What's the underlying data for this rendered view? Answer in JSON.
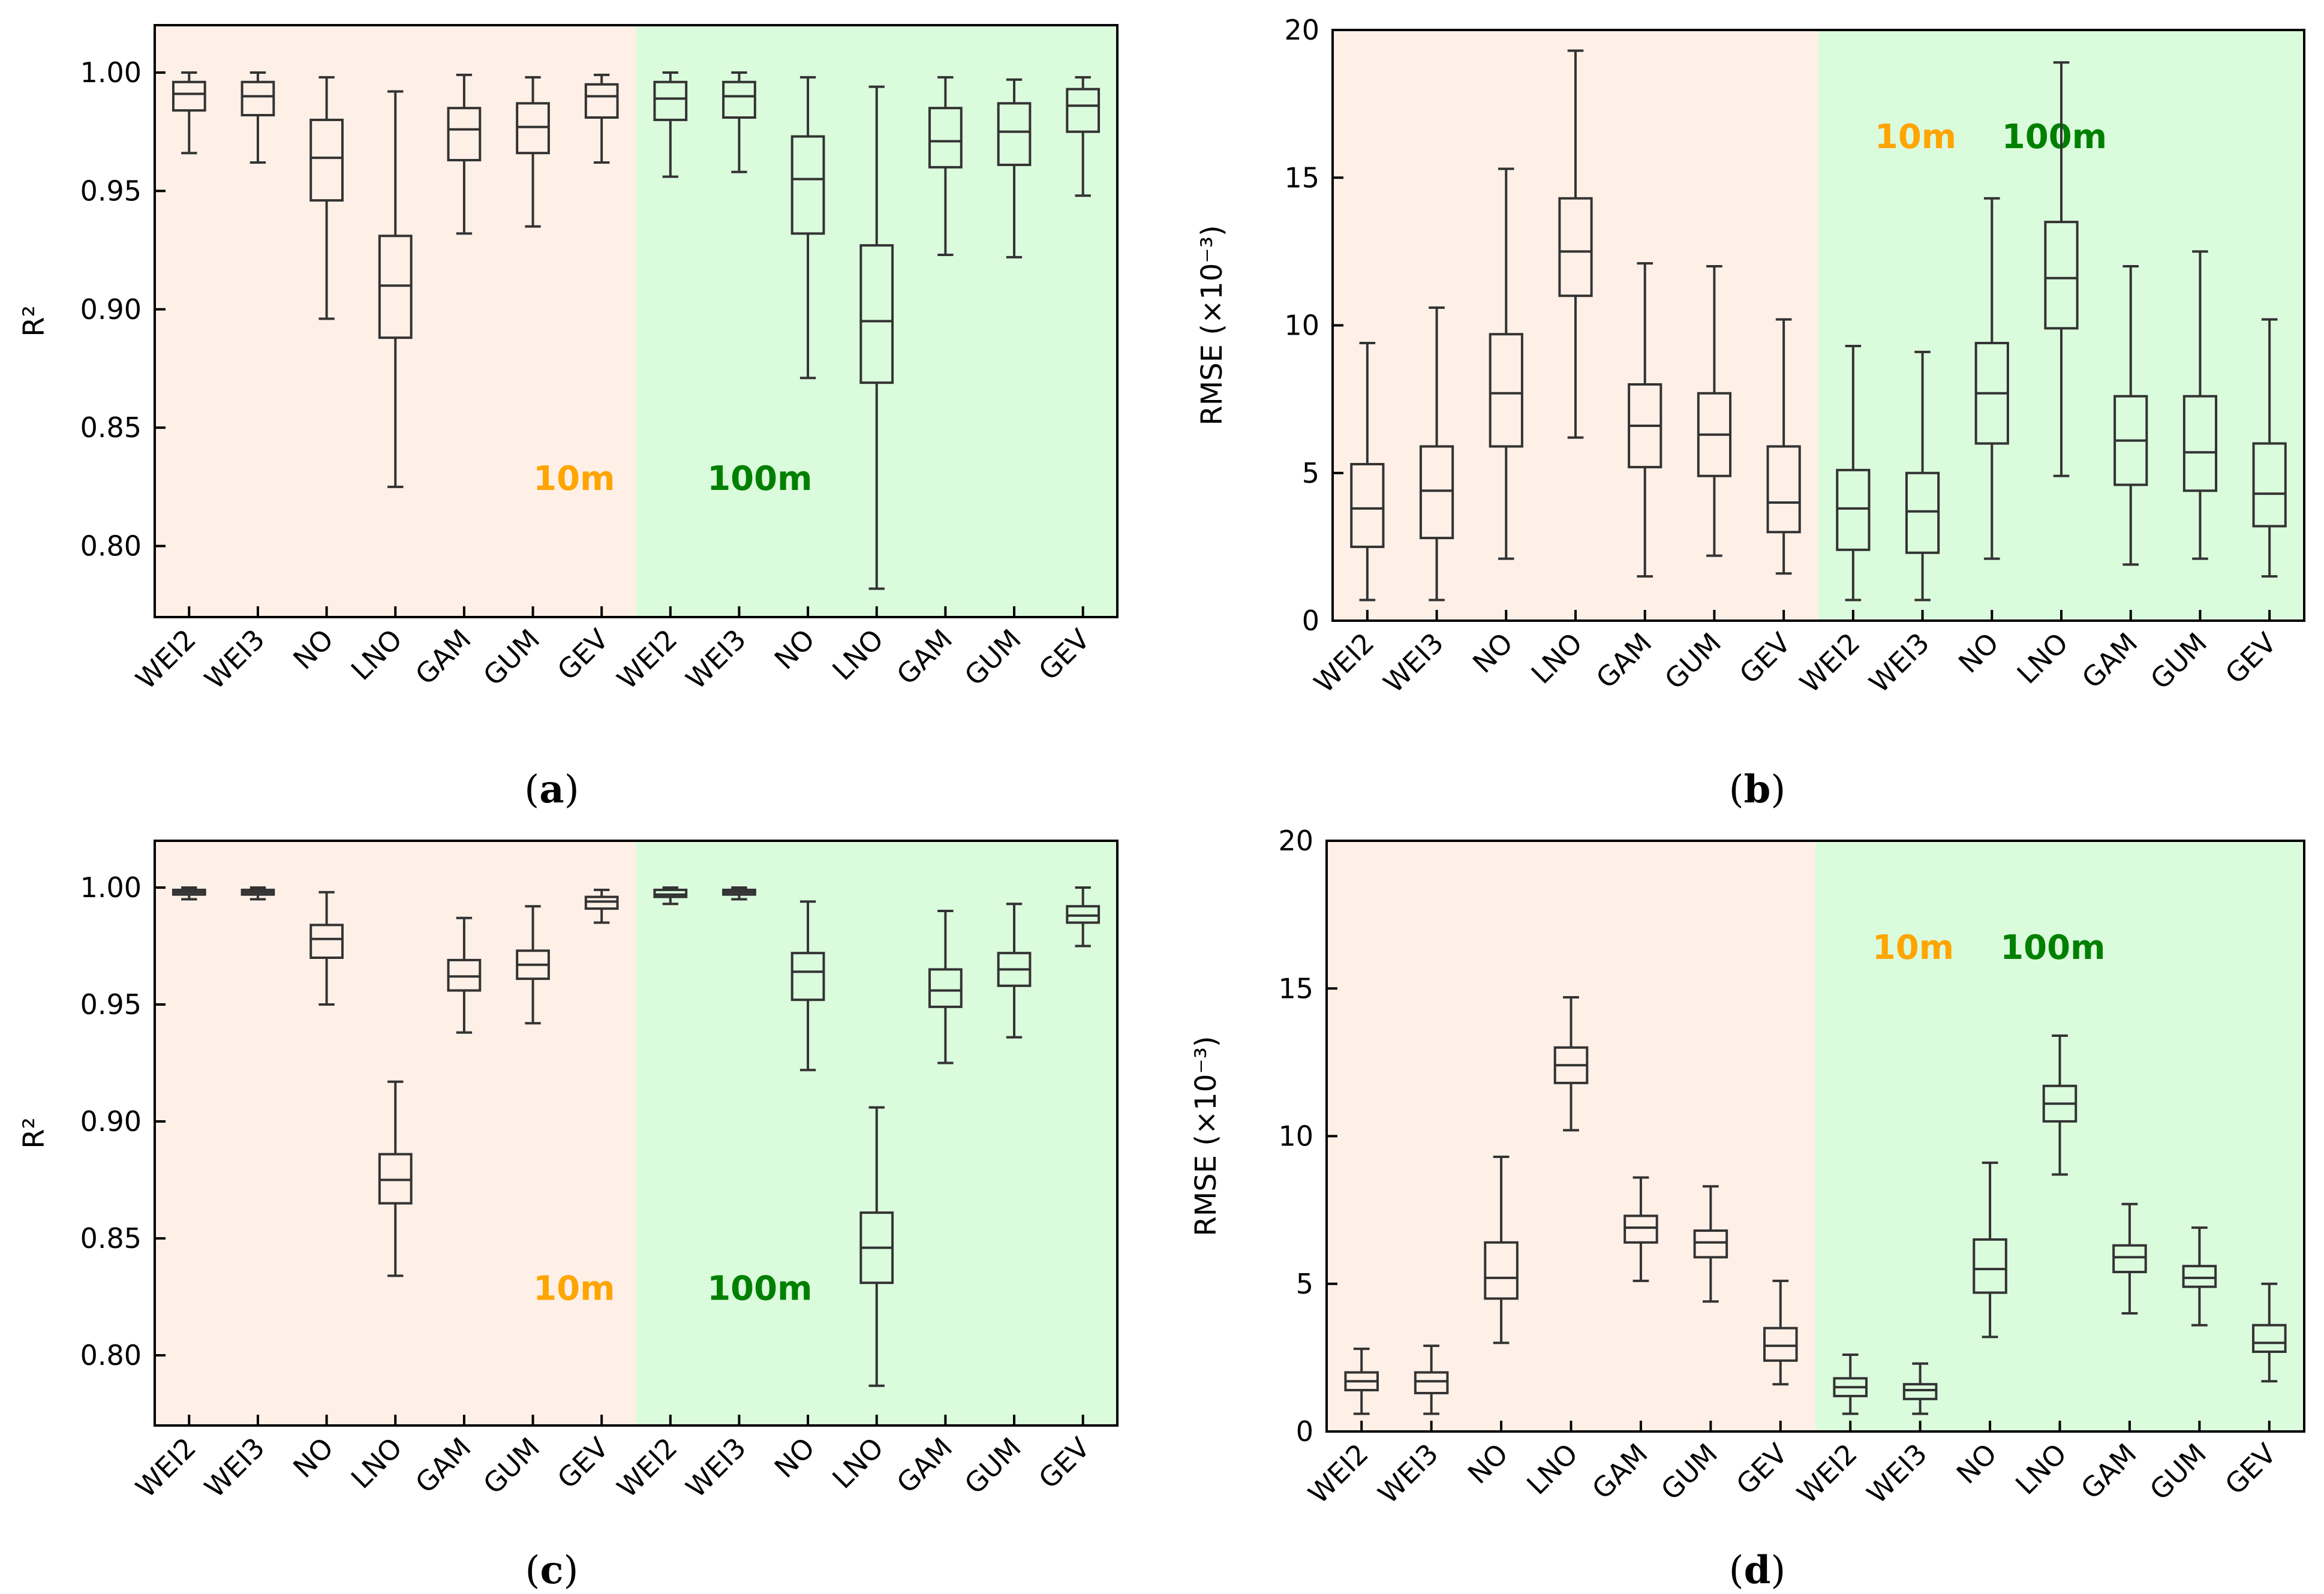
{
  "colors": {
    "region_10m_bg": "#fef0e7",
    "region_100m_bg": "#dbfbdd",
    "label_10m": "#ffa500",
    "label_100m": "#008000",
    "box_stroke": "#333333"
  },
  "chart_data": [
    {
      "type": "boxplot",
      "panel_label": "a",
      "ylabel": "R²",
      "ylim": [
        0.77,
        1.02
      ],
      "yticks": [
        0.8,
        0.85,
        0.9,
        0.95,
        1.0
      ],
      "ytick_labels": [
        "0.80",
        "0.85",
        "0.90",
        "0.95",
        "1.00"
      ],
      "categories": [
        "WEI2",
        "WEI3",
        "NO",
        "LNO",
        "GAM",
        "GUM",
        "GEV",
        "WEI2",
        "WEI3",
        "NO",
        "LNO",
        "GAM",
        "GUM",
        "GEV"
      ],
      "regions": [
        {
          "label": "10m",
          "range": [
            0,
            6
          ]
        },
        {
          "label": "100m",
          "range": [
            7,
            13
          ]
        }
      ],
      "label_pos": "bottom",
      "boxes": [
        {
          "min": 0.966,
          "q1": 0.984,
          "median": 0.991,
          "q3": 0.996,
          "max": 1.0
        },
        {
          "min": 0.962,
          "q1": 0.982,
          "median": 0.99,
          "q3": 0.996,
          "max": 1.0
        },
        {
          "min": 0.896,
          "q1": 0.946,
          "median": 0.964,
          "q3": 0.98,
          "max": 0.998
        },
        {
          "min": 0.825,
          "q1": 0.888,
          "median": 0.91,
          "q3": 0.931,
          "max": 0.992
        },
        {
          "min": 0.932,
          "q1": 0.963,
          "median": 0.976,
          "q3": 0.985,
          "max": 0.999
        },
        {
          "min": 0.935,
          "q1": 0.966,
          "median": 0.977,
          "q3": 0.987,
          "max": 0.998
        },
        {
          "min": 0.962,
          "q1": 0.981,
          "median": 0.99,
          "q3": 0.995,
          "max": 0.999
        },
        {
          "min": 0.956,
          "q1": 0.98,
          "median": 0.989,
          "q3": 0.996,
          "max": 1.0
        },
        {
          "min": 0.958,
          "q1": 0.981,
          "median": 0.99,
          "q3": 0.996,
          "max": 1.0
        },
        {
          "min": 0.871,
          "q1": 0.932,
          "median": 0.955,
          "q3": 0.973,
          "max": 0.998
        },
        {
          "min": 0.782,
          "q1": 0.869,
          "median": 0.895,
          "q3": 0.927,
          "max": 0.994
        },
        {
          "min": 0.923,
          "q1": 0.96,
          "median": 0.971,
          "q3": 0.985,
          "max": 0.998
        },
        {
          "min": 0.922,
          "q1": 0.961,
          "median": 0.975,
          "q3": 0.987,
          "max": 0.997
        },
        {
          "min": 0.948,
          "q1": 0.975,
          "median": 0.986,
          "q3": 0.993,
          "max": 0.998
        }
      ]
    },
    {
      "type": "boxplot",
      "panel_label": "b",
      "ylabel": "RMSE (×10⁻³)",
      "ylim": [
        0,
        20
      ],
      "yticks": [
        0,
        5,
        10,
        15,
        20
      ],
      "ytick_labels": [
        "0",
        "5",
        "10",
        "15",
        "20"
      ],
      "categories": [
        "WEI2",
        "WEI3",
        "NO",
        "LNO",
        "GAM",
        "GUM",
        "GEV",
        "WEI2",
        "WEI3",
        "NO",
        "LNO",
        "GAM",
        "GUM",
        "GEV"
      ],
      "regions": [
        {
          "label": "10m",
          "range": [
            0,
            6
          ]
        },
        {
          "label": "100m",
          "range": [
            7,
            13
          ]
        }
      ],
      "label_pos": "top",
      "boxes": [
        {
          "min": 0.7,
          "q1": 2.5,
          "median": 3.8,
          "q3": 5.3,
          "max": 9.4
        },
        {
          "min": 0.7,
          "q1": 2.8,
          "median": 4.4,
          "q3": 5.9,
          "max": 10.6
        },
        {
          "min": 2.1,
          "q1": 5.9,
          "median": 7.7,
          "q3": 9.7,
          "max": 15.3
        },
        {
          "min": 6.2,
          "q1": 11.0,
          "median": 12.5,
          "q3": 14.3,
          "max": 19.3
        },
        {
          "min": 1.5,
          "q1": 5.2,
          "median": 6.6,
          "q3": 8.0,
          "max": 12.1
        },
        {
          "min": 2.2,
          "q1": 4.9,
          "median": 6.3,
          "q3": 7.7,
          "max": 12.0
        },
        {
          "min": 1.6,
          "q1": 3.0,
          "median": 4.0,
          "q3": 5.9,
          "max": 10.2
        },
        {
          "min": 0.7,
          "q1": 2.4,
          "median": 3.8,
          "q3": 5.1,
          "max": 9.3
        },
        {
          "min": 0.7,
          "q1": 2.3,
          "median": 3.7,
          "q3": 5.0,
          "max": 9.1
        },
        {
          "min": 2.1,
          "q1": 6.0,
          "median": 7.7,
          "q3": 9.4,
          "max": 14.3
        },
        {
          "min": 4.9,
          "q1": 9.9,
          "median": 11.6,
          "q3": 13.5,
          "max": 18.9
        },
        {
          "min": 1.9,
          "q1": 4.6,
          "median": 6.1,
          "q3": 7.6,
          "max": 12.0
        },
        {
          "min": 2.1,
          "q1": 4.4,
          "median": 5.7,
          "q3": 7.6,
          "max": 12.5
        },
        {
          "min": 1.5,
          "q1": 3.2,
          "median": 4.3,
          "q3": 6.0,
          "max": 10.2
        }
      ]
    },
    {
      "type": "boxplot",
      "panel_label": "c",
      "ylabel": "R²",
      "ylim": [
        0.77,
        1.02
      ],
      "yticks": [
        0.8,
        0.85,
        0.9,
        0.95,
        1.0
      ],
      "ytick_labels": [
        "0.80",
        "0.85",
        "0.90",
        "0.95",
        "1.00"
      ],
      "categories": [
        "WEI2",
        "WEI3",
        "NO",
        "LNO",
        "GAM",
        "GUM",
        "GEV",
        "WEI2",
        "WEI3",
        "NO",
        "LNO",
        "GAM",
        "GUM",
        "GEV"
      ],
      "regions": [
        {
          "label": "10m",
          "range": [
            0,
            6
          ]
        },
        {
          "label": "100m",
          "range": [
            7,
            13
          ]
        }
      ],
      "label_pos": "bottom",
      "boxes": [
        {
          "min": 0.995,
          "q1": 0.997,
          "median": 0.998,
          "q3": 0.999,
          "max": 1.0
        },
        {
          "min": 0.995,
          "q1": 0.997,
          "median": 0.998,
          "q3": 0.999,
          "max": 1.0
        },
        {
          "min": 0.95,
          "q1": 0.97,
          "median": 0.978,
          "q3": 0.984,
          "max": 0.998
        },
        {
          "min": 0.834,
          "q1": 0.865,
          "median": 0.875,
          "q3": 0.886,
          "max": 0.917
        },
        {
          "min": 0.938,
          "q1": 0.956,
          "median": 0.962,
          "q3": 0.969,
          "max": 0.987
        },
        {
          "min": 0.942,
          "q1": 0.961,
          "median": 0.967,
          "q3": 0.973,
          "max": 0.992
        },
        {
          "min": 0.985,
          "q1": 0.991,
          "median": 0.994,
          "q3": 0.996,
          "max": 0.999
        },
        {
          "min": 0.993,
          "q1": 0.996,
          "median": 0.997,
          "q3": 0.999,
          "max": 1.0
        },
        {
          "min": 0.995,
          "q1": 0.997,
          "median": 0.998,
          "q3": 0.999,
          "max": 1.0
        },
        {
          "min": 0.922,
          "q1": 0.952,
          "median": 0.964,
          "q3": 0.972,
          "max": 0.994
        },
        {
          "min": 0.787,
          "q1": 0.831,
          "median": 0.846,
          "q3": 0.861,
          "max": 0.906
        },
        {
          "min": 0.925,
          "q1": 0.949,
          "median": 0.956,
          "q3": 0.965,
          "max": 0.99
        },
        {
          "min": 0.936,
          "q1": 0.958,
          "median": 0.965,
          "q3": 0.972,
          "max": 0.993
        },
        {
          "min": 0.975,
          "q1": 0.985,
          "median": 0.988,
          "q3": 0.992,
          "max": 1.0
        }
      ]
    },
    {
      "type": "boxplot",
      "panel_label": "d",
      "ylabel": "RMSE (×10⁻³)",
      "ylim": [
        0,
        20
      ],
      "yticks": [
        0,
        5,
        10,
        15,
        20
      ],
      "ytick_labels": [
        "0",
        "5",
        "10",
        "15",
        "20"
      ],
      "categories": [
        "WEI2",
        "WEI3",
        "NO",
        "LNO",
        "GAM",
        "GUM",
        "GEV",
        "WEI2",
        "WEI3",
        "NO",
        "LNO",
        "GAM",
        "GUM",
        "GEV"
      ],
      "regions": [
        {
          "label": "10m",
          "range": [
            0,
            6
          ]
        },
        {
          "label": "100m",
          "range": [
            7,
            13
          ]
        }
      ],
      "label_pos": "top",
      "boxes": [
        {
          "min": 0.6,
          "q1": 1.4,
          "median": 1.7,
          "q3": 2.0,
          "max": 2.8
        },
        {
          "min": 0.6,
          "q1": 1.3,
          "median": 1.7,
          "q3": 2.0,
          "max": 2.9
        },
        {
          "min": 3.0,
          "q1": 4.5,
          "median": 5.2,
          "q3": 6.4,
          "max": 9.3
        },
        {
          "min": 10.2,
          "q1": 11.8,
          "median": 12.4,
          "q3": 13.0,
          "max": 14.7
        },
        {
          "min": 5.1,
          "q1": 6.4,
          "median": 6.9,
          "q3": 7.3,
          "max": 8.6
        },
        {
          "min": 4.4,
          "q1": 5.9,
          "median": 6.4,
          "q3": 6.8,
          "max": 8.3
        },
        {
          "min": 1.6,
          "q1": 2.4,
          "median": 2.9,
          "q3": 3.5,
          "max": 5.1
        },
        {
          "min": 0.6,
          "q1": 1.2,
          "median": 1.5,
          "q3": 1.8,
          "max": 2.6
        },
        {
          "min": 0.6,
          "q1": 1.1,
          "median": 1.4,
          "q3": 1.6,
          "max": 2.3
        },
        {
          "min": 3.2,
          "q1": 4.7,
          "median": 5.5,
          "q3": 6.5,
          "max": 9.1
        },
        {
          "min": 8.7,
          "q1": 10.5,
          "median": 11.1,
          "q3": 11.7,
          "max": 13.4
        },
        {
          "min": 4.0,
          "q1": 5.4,
          "median": 5.9,
          "q3": 6.3,
          "max": 7.7
        },
        {
          "min": 3.6,
          "q1": 4.9,
          "median": 5.2,
          "q3": 5.6,
          "max": 6.9
        },
        {
          "min": 1.7,
          "q1": 2.7,
          "median": 3.0,
          "q3": 3.6,
          "max": 5.0
        }
      ]
    }
  ]
}
